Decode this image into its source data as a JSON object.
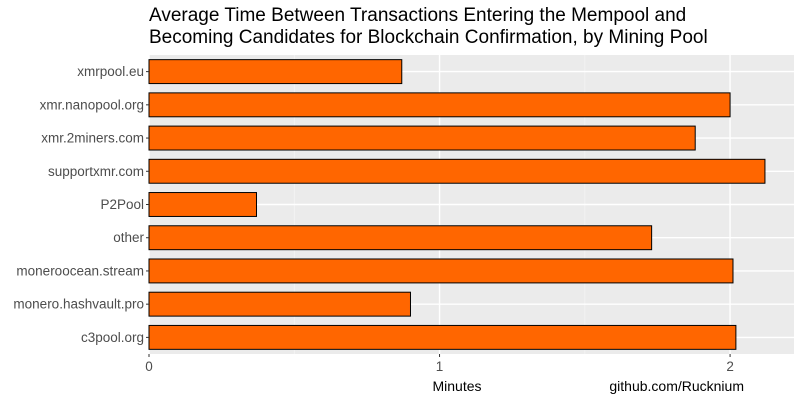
{
  "chart_data": {
    "type": "bar",
    "orientation": "horizontal",
    "title": "Average Time Between Transactions Entering the Mempool and Becoming Candidates for Blockchain Confirmation, by Mining Pool",
    "title_lines": [
      "Average Time Between Transactions Entering the Mempool and",
      "Becoming Candidates for Blockchain Confirmation, by Mining Pool"
    ],
    "categories": [
      "xmrpool.eu",
      "xmr.nanopool.org",
      "xmr.2miners.com",
      "supportxmr.com",
      "P2Pool",
      "other",
      "moneroocean.stream",
      "monero.hashvault.pro",
      "c3pool.org"
    ],
    "values": [
      0.87,
      2.0,
      1.88,
      2.12,
      0.37,
      1.73,
      2.01,
      0.9,
      2.02
    ],
    "xlabel": "Minutes",
    "ylabel": "",
    "xlim": [
      0,
      2.22
    ],
    "xticks": [
      0,
      1,
      2
    ],
    "caption": "github.com/Rucknium",
    "grid": true,
    "legend": "none",
    "colors": {
      "bar_fill": "#ff6600",
      "bar_stroke": "#000000",
      "panel_background": "#ebebeb",
      "grid_major": "#ffffff",
      "grid_minor": "#f5f5f5"
    }
  }
}
